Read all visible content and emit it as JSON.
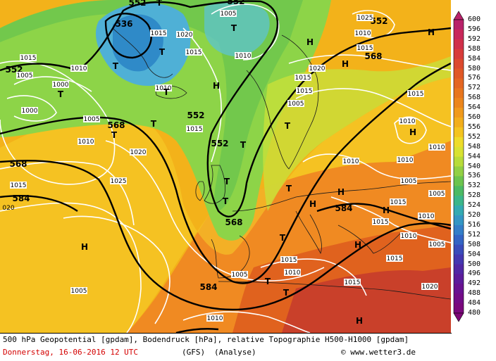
{
  "colors": {
    "ocean_base": "#f3b21a",
    "band_green": "#7fd24a",
    "band_light_green": "#a8de3c",
    "band_yellow": "#ecd93a",
    "band_orange": "#f08a22",
    "band_dark_orange": "#e0621e",
    "band_red": "#c9402a",
    "band_cyan": "#4fb0d6",
    "band_blue": "#2f8ac8"
  },
  "legend": {
    "labels": [
      "600",
      "596",
      "592",
      "588",
      "584",
      "580",
      "576",
      "572",
      "568",
      "564",
      "560",
      "556",
      "552",
      "548",
      "544",
      "540",
      "536",
      "532",
      "528",
      "524",
      "520",
      "516",
      "512",
      "508",
      "504",
      "500",
      "496",
      "492",
      "488",
      "484",
      "480"
    ],
    "colors": [
      "#b8226a",
      "#c8285a",
      "#d0304a",
      "#d83c3a",
      "#dc4a2e",
      "#e05826",
      "#e46622",
      "#e8761e",
      "#ec861c",
      "#f09a1c",
      "#f2ae1c",
      "#f4c420",
      "#eedc2a",
      "#d8e232",
      "#b8dc3a",
      "#92d044",
      "#6cc44e",
      "#4cba64",
      "#3cb68a",
      "#34aab2",
      "#3496c4",
      "#347ec8",
      "#3464c4",
      "#3a4cba",
      "#4438b0",
      "#5028a4",
      "#5c1c9a",
      "#681290",
      "#720c86",
      "#7a087c",
      "#7e0676"
    ]
  },
  "map": {
    "contour_labels_bold": [
      {
        "text": "536",
        "kind": "z500"
      },
      {
        "text": "552",
        "kind": "z500"
      },
      {
        "text": "552",
        "kind": "z500"
      },
      {
        "text": "552",
        "kind": "z500"
      },
      {
        "text": "552",
        "kind": "z500"
      },
      {
        "text": "552",
        "kind": "z500"
      },
      {
        "text": "552",
        "kind": "z500"
      },
      {
        "text": "568",
        "kind": "z500"
      },
      {
        "text": "568",
        "kind": "z500"
      },
      {
        "text": "568",
        "kind": "z500"
      },
      {
        "text": "568",
        "kind": "z500"
      },
      {
        "text": "584",
        "kind": "z500"
      },
      {
        "text": "584",
        "kind": "z500"
      },
      {
        "text": "584",
        "kind": "z500"
      }
    ],
    "pressure_labels": [
      "1015",
      "1015",
      "1020",
      "1015",
      "1015",
      "1010",
      "1005",
      "1000",
      "1000",
      "1005",
      "1010",
      "1015",
      "1010",
      "1015",
      "1020",
      "1025",
      "1015",
      "1010",
      "1005",
      "1010",
      "1015",
      "1020",
      "1010",
      "1015",
      "1010",
      "1005",
      "1010",
      "1005",
      "1015",
      "1025",
      "1005",
      "1010",
      "1010",
      "1015",
      "1015",
      "1010",
      "1005",
      "1005",
      "1010",
      "1015",
      "1010",
      "1005",
      "1015",
      "1020"
    ],
    "pressure_label_020": "020",
    "centers": [
      {
        "type": "T"
      },
      {
        "type": "T"
      },
      {
        "type": "T"
      },
      {
        "type": "T"
      },
      {
        "type": "T"
      },
      {
        "type": "T"
      },
      {
        "type": "T"
      },
      {
        "type": "T"
      },
      {
        "type": "T"
      },
      {
        "type": "T"
      },
      {
        "type": "T"
      },
      {
        "type": "T"
      },
      {
        "type": "T"
      },
      {
        "type": "T"
      },
      {
        "type": "T"
      },
      {
        "type": "T"
      },
      {
        "type": "H"
      },
      {
        "type": "H"
      },
      {
        "type": "H"
      },
      {
        "type": "H"
      },
      {
        "type": "H"
      },
      {
        "type": "H"
      },
      {
        "type": "H"
      },
      {
        "type": "H"
      },
      {
        "type": "H"
      },
      {
        "type": "H"
      },
      {
        "type": "H"
      }
    ]
  },
  "caption": {
    "line1": "500 hPa Geopotential [gpdam], Bodendruck [hPa], relative Topographie H500-H1000 [gpdam]",
    "date": "Donnerstag, 16-06-2016  12 UTC",
    "model": "(GFS)",
    "analysis": "(Analyse)",
    "credit": "© www.wetter3.de"
  }
}
